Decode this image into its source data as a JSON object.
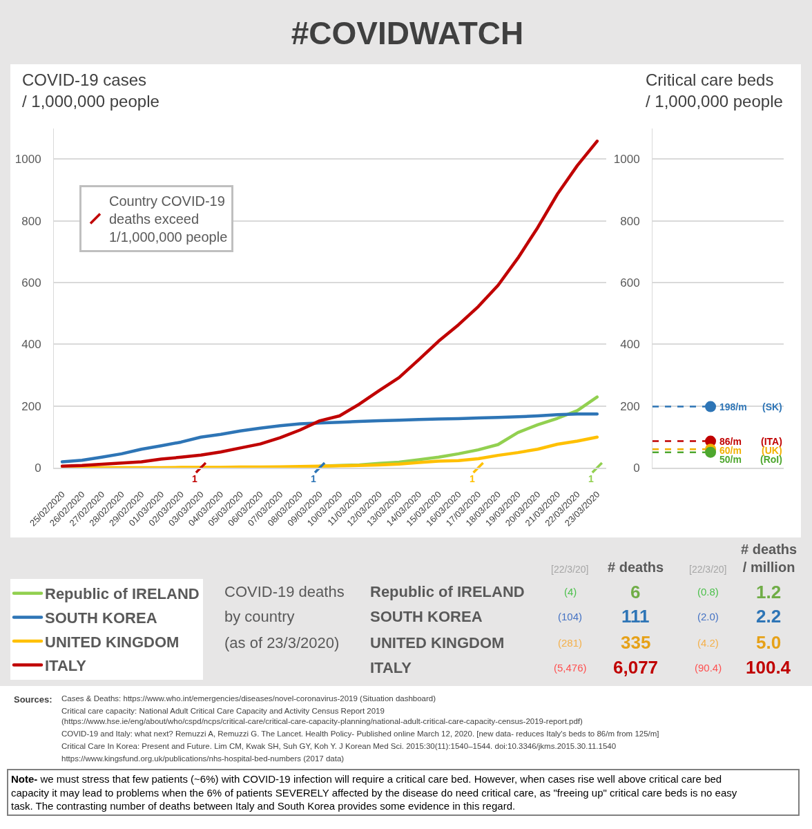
{
  "chart_data": [
    {
      "type": "line",
      "title": "#COVIDWATCH",
      "ylabel": "COVID-19 cases / 1,000,000 people",
      "categories": [
        "25/02/2020",
        "26/02/2020",
        "27/02/2020",
        "28/02/2020",
        "29/02/2020",
        "01/03/2020",
        "02/03/2020",
        "03/03/2020",
        "04/03/2020",
        "05/03/2020",
        "06/03/2020",
        "07/03/2020",
        "08/03/2020",
        "09/03/2020",
        "10/03/2020",
        "11/03/2020",
        "12/03/2020",
        "13/03/2020",
        "14/03/2020",
        "15/03/2020",
        "16/03/2020",
        "17/03/2020",
        "18/03/2020",
        "19/03/2020",
        "20/03/2020",
        "21/03/2020",
        "22/03/2020",
        "23/03/2020"
      ],
      "ylim": [
        0,
        1100
      ],
      "yticks": [
        0,
        200,
        400,
        600,
        800,
        1000
      ],
      "grid": "y",
      "legend": "bottom left",
      "series": [
        {
          "name": "Republic of IRELAND",
          "color": "#92d050",
          "values": [
            null,
            null,
            null,
            null,
            null,
            null,
            null,
            null,
            null,
            null,
            null,
            null,
            null,
            5,
            7,
            9,
            14,
            18,
            26,
            34,
            45,
            58,
            75,
            114,
            139,
            160,
            185,
            229
          ]
        },
        {
          "name": "SOUTH KOREA",
          "color": "#2e75b6",
          "values": [
            19,
            24,
            34,
            45,
            60,
            71,
            83,
            99,
            108,
            119,
            128,
            136,
            142,
            145,
            147,
            150,
            152,
            154,
            156,
            158,
            159,
            161,
            163,
            165,
            168,
            172,
            174,
            174
          ]
        },
        {
          "name": "UNITED KINGDOM",
          "color": "#ffc000",
          "values": [
            0,
            0,
            0,
            0,
            0,
            0,
            1,
            1,
            1,
            2,
            2,
            3,
            4,
            5,
            6,
            7,
            9,
            12,
            17,
            21,
            23,
            29,
            40,
            49,
            60,
            76,
            86,
            99
          ]
        },
        {
          "name": "ITALY",
          "color": "#c00000",
          "values": [
            5,
            7,
            11,
            15,
            19,
            28,
            34,
            41,
            51,
            64,
            77,
            97,
            122,
            152,
            168,
            206,
            250,
            292,
            350,
            410,
            463,
            522,
            591,
            679,
            778,
            887,
            979,
            1058
          ]
        },
        {
          "type": "scatter",
          "name": "Country COVID-19 deaths exceed 1/1,000,000 people",
          "x": [
            "03/03/2020",
            "09/03/2020",
            "17/03/2020",
            "23/03/2020"
          ],
          "values": [
            0,
            0,
            0,
            0
          ],
          "colors": [
            "#c00000",
            "#2e75b6",
            "#ffc000",
            "#92d050"
          ]
        }
      ],
      "annotations": [
        {
          "text": "1",
          "x": "03/03/2020",
          "y": 0
        },
        {
          "text": "1",
          "x": "09/03/2020",
          "y": 0
        },
        {
          "text": "1",
          "x": "17/03/2020",
          "y": 0
        },
        {
          "text": "1",
          "x": "23/03/2020",
          "y": 0
        }
      ]
    },
    {
      "type": "scatter",
      "ylabel": "Critical care beds / 1,000,000 people",
      "categories": [
        null
      ],
      "ylim": [
        0,
        1100
      ],
      "yticks": [
        0,
        200,
        400,
        600,
        800,
        1000
      ],
      "grid": "y",
      "tick_labels": "y",
      "marker": "circle",
      "series": [
        {
          "name": "(SK)",
          "color": "#2e75b6",
          "values": [
            198
          ],
          "value_labels": [
            "198/m"
          ]
        },
        {
          "name": "(ITA)",
          "color": "#c00000",
          "values": [
            86
          ],
          "value_labels": [
            "86/m"
          ]
        },
        {
          "name": "(UK)",
          "color": "#f2b000",
          "values": [
            60
          ],
          "value_labels": [
            "60/m"
          ]
        },
        {
          "name": "(RoI)",
          "color": "#4ea72e",
          "values": [
            50
          ],
          "value_labels": [
            "50/m"
          ]
        }
      ],
      "ref_lines": [
        {
          "axis": "y",
          "value": 198,
          "color": "#2e75b6",
          "line_style": "dashed"
        },
        {
          "axis": "y",
          "value": 86,
          "color": "#c00000",
          "line_style": "dashed"
        },
        {
          "axis": "y",
          "value": 60,
          "color": "#f2b000",
          "line_style": "dashed"
        },
        {
          "axis": "y",
          "value": 50,
          "color": "#4ea72e",
          "line_style": "dashed"
        }
      ]
    },
    {
      "type": "other",
      "title": "COVID-19 deaths by country (as of 23/3/2020)",
      "categories": [
        "Republic of IRELAND",
        "SOUTH KOREA",
        "UNITED KINGDOM",
        "ITALY"
      ],
      "series": [
        {
          "name": "[22/3/20]",
          "colors": [
            "#4cc04c",
            "#4472c4",
            "#f4b04a",
            "#ff5050"
          ],
          "values": [
            4,
            104,
            281,
            5476
          ],
          "value_labels": [
            "(4)",
            "(104)",
            "(281)",
            "(5,476)"
          ]
        },
        {
          "name": "# deaths",
          "colors": [
            "#70ad47",
            "#2e75b6",
            "#e6a118",
            "#c00000"
          ],
          "values": [
            6,
            111,
            335,
            6077
          ],
          "value_labels": [
            "6",
            "111",
            "335",
            "6,077"
          ]
        },
        {
          "name": "[22/3/20]",
          "colors": [
            "#4cc04c",
            "#4472c4",
            "#f4b04a",
            "#ff5050"
          ],
          "values": [
            0.8,
            2.0,
            4.2,
            90.4
          ],
          "value_labels": [
            "(0.8)",
            "(2.0)",
            "(4.2)",
            "(90.4)"
          ]
        },
        {
          "name": "# deaths / million",
          "colors": [
            "#70ad47",
            "#2e75b6",
            "#e6a118",
            "#c00000"
          ],
          "values": [
            1.2,
            2.2,
            5.0,
            100.4
          ],
          "value_labels": [
            "1.2",
            "2.2",
            "5.0",
            "100.4"
          ]
        }
      ],
      "annotations": [
        "Sources:",
        "Cases & Deaths: https://www.who.int/emergencies/diseases/novel-coronavirus-2019 (Situation dashboard)",
        "Critical care capacity: National Adult Critical Care Capacity and Activity Census Report 2019 (https://www.hse.ie/eng/about/who/cspd/ncps/critical-care/critical-care-capacity-planning/national-adult-critical-care-capacity-census-2019-report.pdf)",
        "COVID-19 and Italy: what next? Remuzzi A, Remuzzi G. The Lancet. Health Policy- Published online March 12, 2020. [new data- reduces Italy's beds to 86/m from 125/m]",
        "Critical Care In Korea: Present and Future. Lim CM, Kwak SH, Suh GY, Koh Y. J Korean Med Sci. 2015:30(11):1540–1544. doi:10.3346/jkms.2015.30.11.1540",
        "https://www.kingsfund.org.uk/publications/nhs-hospital-bed-numbers (2017 data)",
        "Note- we must stress that few patients (~6%) with COVID-19 infection will require a critical care bed. However, when cases rise well above critical care bed capacity it may lead to problems when the 6% of patients SEVERELY affected by the disease do need critical care, as \"freeing up\" critical care beds is no easy task. The contrasting number of deaths between Italy and South Korea provides some evidence in this regard."
      ]
    }
  ]
}
